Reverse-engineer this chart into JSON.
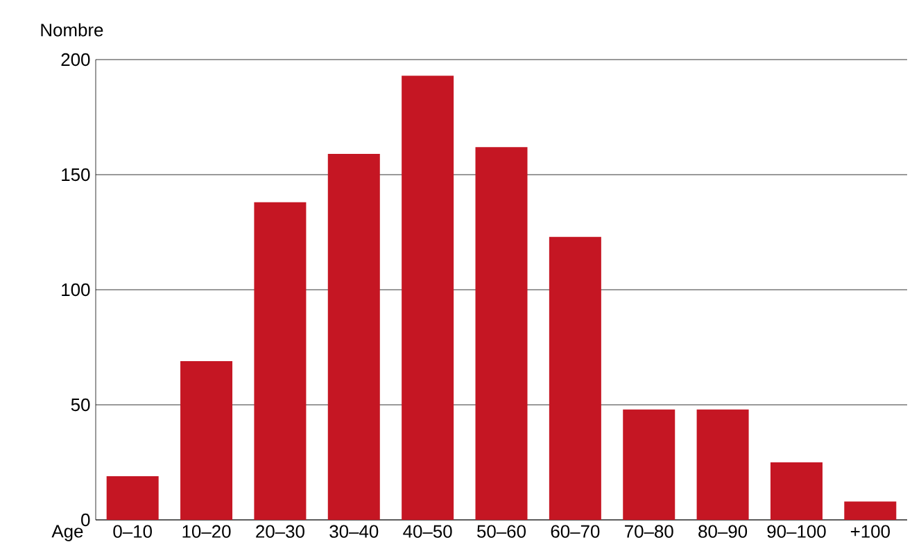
{
  "chart_data": {
    "type": "bar",
    "xlabel": "Age",
    "ylabel": "Nombre",
    "categories": [
      "0–10",
      "10–20",
      "20–30",
      "30–40",
      "40–50",
      "50–60",
      "60–70",
      "70–80",
      "80–90",
      "90–100",
      "+100"
    ],
    "values": [
      19,
      69,
      138,
      159,
      193,
      162,
      123,
      48,
      48,
      25,
      8
    ],
    "color": "#c51623",
    "ylim": [
      0,
      200
    ],
    "yticks": [
      0,
      50,
      100,
      150,
      200
    ],
    "grid": "y"
  }
}
